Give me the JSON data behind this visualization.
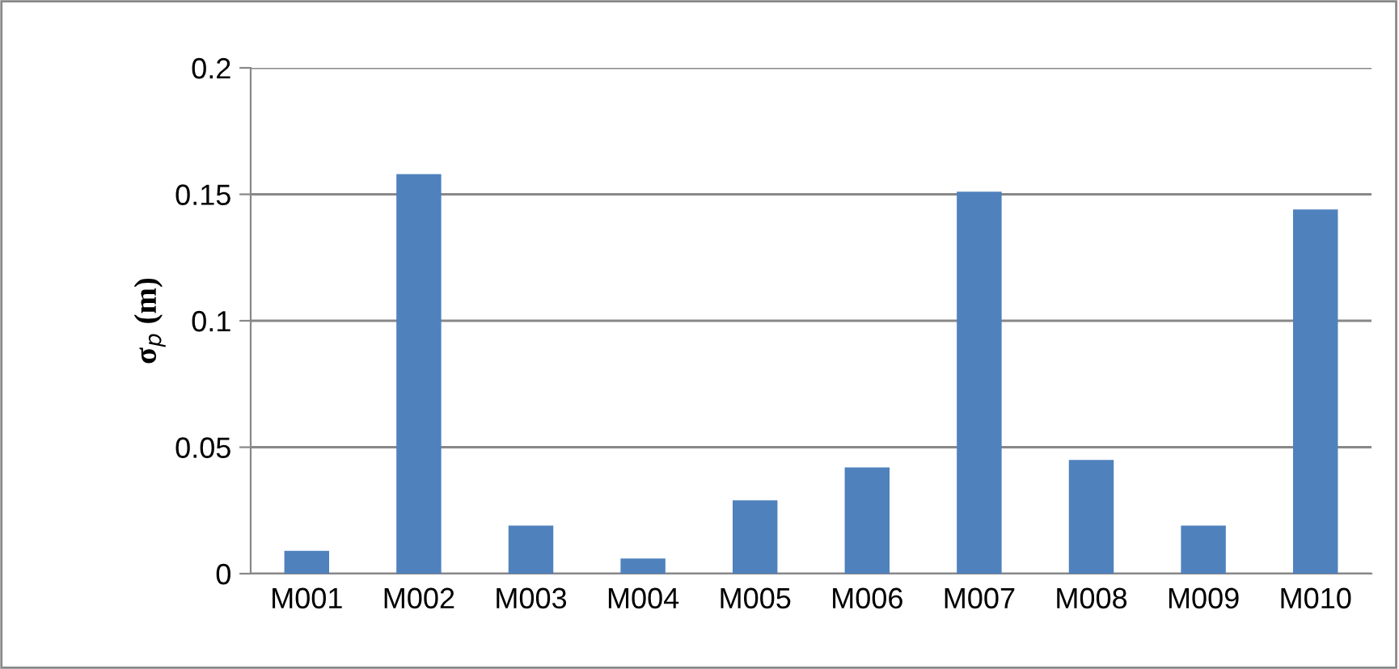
{
  "chart_data": {
    "type": "bar",
    "ylabel": "σ$_{p}$ (m)",
    "categories": [
      "M001",
      "M002",
      "M003",
      "M004",
      "M005",
      "M006",
      "M007",
      "M008",
      "M009",
      "M010"
    ],
    "values": [
      0.009,
      0.158,
      0.019,
      0.006,
      0.029,
      0.042,
      0.151,
      0.045,
      0.019,
      0.144
    ],
    "color": "#4f81bd",
    "ylim": [
      0,
      0.2
    ],
    "yticks": [
      0,
      0.05,
      0.1,
      0.15,
      0.2
    ],
    "grid": "y",
    "legend": false
  }
}
